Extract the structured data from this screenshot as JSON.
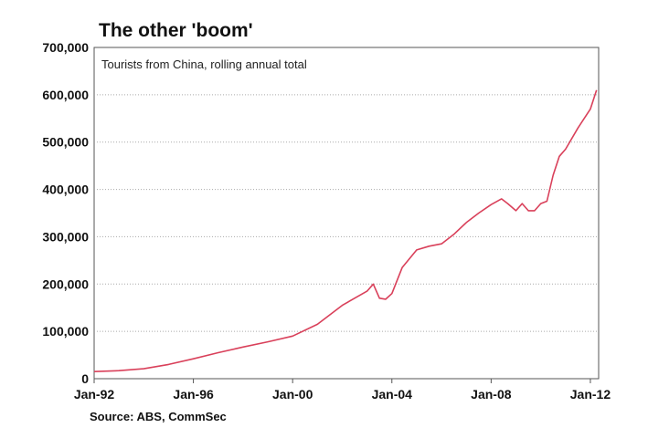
{
  "chart_data": {
    "type": "line",
    "title": "The other 'boom'",
    "subtitle": "Tourists from China, rolling annual total",
    "source": "Source: ABS, CommSec",
    "xlabel": "",
    "ylabel": "",
    "ylim": [
      0,
      700000
    ],
    "xlim": [
      "1992-01",
      "2012-05"
    ],
    "grid": true,
    "line_color": "#d9405a",
    "y_ticks": [
      {
        "value": 0,
        "label": "0"
      },
      {
        "value": 100000,
        "label": "100,000"
      },
      {
        "value": 200000,
        "label": "200,000"
      },
      {
        "value": 300000,
        "label": "300,000"
      },
      {
        "value": 400000,
        "label": "400,000"
      },
      {
        "value": 500000,
        "label": "500,000"
      },
      {
        "value": 600000,
        "label": "600,000"
      },
      {
        "value": 700000,
        "label": "700,000"
      }
    ],
    "x_ticks": [
      {
        "value": "1992-01",
        "label": "Jan-92"
      },
      {
        "value": "1996-01",
        "label": "Jan-96"
      },
      {
        "value": "2000-01",
        "label": "Jan-00"
      },
      {
        "value": "2004-01",
        "label": "Jan-04"
      },
      {
        "value": "2008-01",
        "label": "Jan-08"
      },
      {
        "value": "2012-01",
        "label": "Jan-12"
      }
    ],
    "series": [
      {
        "x": [
          "1992-01",
          "1993-01",
          "1994-01",
          "1995-01",
          "1996-01",
          "1997-01",
          "1998-01",
          "1999-01",
          "2000-01",
          "2001-01",
          "2002-01",
          "2002-07",
          "2003-01",
          "2003-04",
          "2003-07",
          "2003-10",
          "2004-01",
          "2004-06",
          "2005-01",
          "2005-07",
          "2006-01",
          "2006-07",
          "2007-01",
          "2007-07",
          "2008-01",
          "2008-06",
          "2008-09",
          "2009-01",
          "2009-04",
          "2009-07",
          "2009-10",
          "2010-01",
          "2010-04",
          "2010-07",
          "2010-10",
          "2011-01",
          "2011-07",
          "2012-01",
          "2012-04"
        ],
        "values": [
          15000,
          17000,
          21000,
          30000,
          42000,
          55000,
          67000,
          78000,
          90000,
          115000,
          155000,
          170000,
          185000,
          200000,
          170000,
          168000,
          180000,
          235000,
          272000,
          280000,
          285000,
          305000,
          330000,
          350000,
          368000,
          380000,
          370000,
          355000,
          370000,
          355000,
          355000,
          370000,
          375000,
          430000,
          470000,
          485000,
          530000,
          570000,
          610000
        ]
      }
    ]
  }
}
